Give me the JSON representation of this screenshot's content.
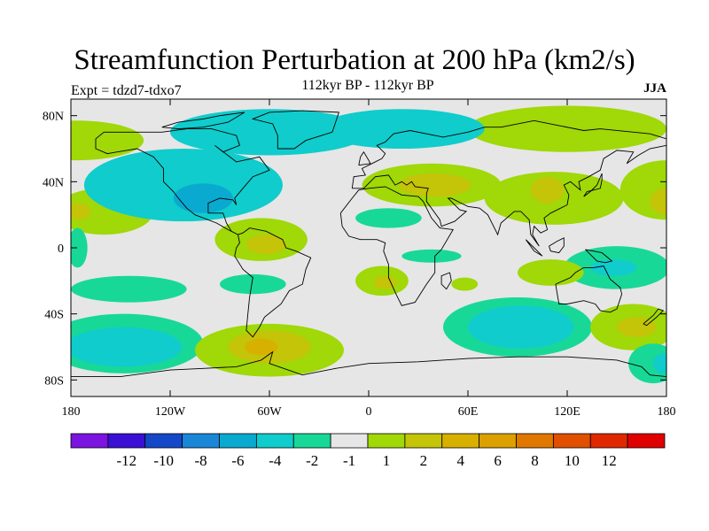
{
  "header": {
    "title": "Streamfunction Perturbation at 200 hPa (km2/s)",
    "subtitle": "112kyr BP - 112kyr BP",
    "expt": "Expt = tdzd7-tdxo7",
    "season": "JJA"
  },
  "map": {
    "lon_range": [
      -180,
      180
    ],
    "lat_range": [
      -90,
      90
    ],
    "x_ticks": [
      {
        "lon": -180,
        "label": "180"
      },
      {
        "lon": -120,
        "label": "120W"
      },
      {
        "lon": -60,
        "label": "60W"
      },
      {
        "lon": 0,
        "label": "0"
      },
      {
        "lon": 60,
        "label": "60E"
      },
      {
        "lon": 120,
        "label": "120E"
      },
      {
        "lon": 180,
        "label": "180"
      }
    ],
    "y_ticks": [
      {
        "lat": 80,
        "label": "80N"
      },
      {
        "lat": 40,
        "label": "40N"
      },
      {
        "lat": 0,
        "label": "0"
      },
      {
        "lat": -40,
        "label": "40S"
      },
      {
        "lat": -80,
        "label": "80S"
      }
    ],
    "background_color": "#e6e6e6",
    "coastline_color": "#000000",
    "regions": [
      {
        "lon": -112,
        "lat": 38,
        "rlon": 60,
        "rlat": 22,
        "level": -2
      },
      {
        "lon": -108,
        "lat": 35,
        "rlon": 38,
        "rlat": 14,
        "level": -3
      },
      {
        "lon": -100,
        "lat": 30,
        "rlon": 18,
        "rlat": 9,
        "level": -4
      },
      {
        "lon": -60,
        "lat": 70,
        "rlon": 60,
        "rlat": 14,
        "level": -2
      },
      {
        "lon": 20,
        "lat": 72,
        "rlon": 50,
        "rlat": 12,
        "level": -2
      },
      {
        "lon": 15,
        "lat": 72,
        "rlon": 30,
        "rlat": 8,
        "level": -3
      },
      {
        "lon": -176,
        "lat": 65,
        "rlon": 40,
        "rlat": 12,
        "level": 1
      },
      {
        "lon": -160,
        "lat": 22,
        "rlon": 30,
        "rlat": 14,
        "level": 1
      },
      {
        "lon": -176,
        "lat": 22,
        "rlon": 8,
        "rlat": 5,
        "level": 2
      },
      {
        "lon": -65,
        "lat": 5,
        "rlon": 28,
        "rlat": 13,
        "level": 1
      },
      {
        "lon": -62,
        "lat": 2,
        "rlon": 12,
        "rlat": 6,
        "level": 2
      },
      {
        "lon": 38,
        "lat": 38,
        "rlon": 42,
        "rlat": 13,
        "level": 1
      },
      {
        "lon": 40,
        "lat": 38,
        "rlon": 22,
        "rlat": 7,
        "level": 2
      },
      {
        "lon": 12,
        "lat": 18,
        "rlon": 20,
        "rlat": 6,
        "level": -1
      },
      {
        "lon": 38,
        "lat": -5,
        "rlon": 18,
        "rlat": 4,
        "level": -1
      },
      {
        "lon": 8,
        "lat": -20,
        "rlon": 16,
        "rlat": 9,
        "level": 1
      },
      {
        "lon": 10,
        "lat": -21,
        "rlon": 7,
        "rlat": 4,
        "level": 2
      },
      {
        "lon": 58,
        "lat": -22,
        "rlon": 8,
        "rlat": 4,
        "level": 1
      },
      {
        "lon": 120,
        "lat": 72,
        "rlon": 60,
        "rlat": 14,
        "level": 1
      },
      {
        "lon": 180,
        "lat": 35,
        "rlon": 28,
        "rlat": 18,
        "level": 1
      },
      {
        "lon": 180,
        "lat": 28,
        "rlon": 10,
        "rlat": 8,
        "level": 2
      },
      {
        "lon": 112,
        "lat": 30,
        "rlon": 42,
        "rlat": 16,
        "level": 1
      },
      {
        "lon": 108,
        "lat": 35,
        "rlon": 10,
        "rlat": 8,
        "level": 2
      },
      {
        "lon": 150,
        "lat": -12,
        "rlon": 32,
        "rlat": 13,
        "level": -1
      },
      {
        "lon": 148,
        "lat": -12,
        "rlon": 14,
        "rlat": 5,
        "level": -2
      },
      {
        "lon": 110,
        "lat": -15,
        "rlon": 20,
        "rlat": 8,
        "level": 1
      },
      {
        "lon": 90,
        "lat": -48,
        "rlon": 45,
        "rlat": 18,
        "level": -1
      },
      {
        "lon": 92,
        "lat": -48,
        "rlon": 32,
        "rlat": 13,
        "level": -2
      },
      {
        "lon": 160,
        "lat": -48,
        "rlon": 26,
        "rlat": 14,
        "level": 1
      },
      {
        "lon": 162,
        "lat": -48,
        "rlon": 12,
        "rlat": 6,
        "level": 2
      },
      {
        "lon": -148,
        "lat": -58,
        "rlon": 48,
        "rlat": 18,
        "level": -1
      },
      {
        "lon": -148,
        "lat": -60,
        "rlon": 35,
        "rlat": 12,
        "level": -2
      },
      {
        "lon": -145,
        "lat": -60,
        "rlon": 20,
        "rlat": 6,
        "level": -3
      },
      {
        "lon": -145,
        "lat": -25,
        "rlon": 35,
        "rlat": 8,
        "level": -1
      },
      {
        "lon": -60,
        "lat": -62,
        "rlon": 45,
        "rlat": 16,
        "level": 1
      },
      {
        "lon": -60,
        "lat": -60,
        "rlon": 25,
        "rlat": 10,
        "level": 2
      },
      {
        "lon": -65,
        "lat": -60,
        "rlon": 10,
        "rlat": 5,
        "level": 4
      },
      {
        "lon": -70,
        "lat": -22,
        "rlon": 20,
        "rlat": 6,
        "level": -1
      },
      {
        "lon": 172,
        "lat": -70,
        "rlon": 15,
        "rlat": 12,
        "level": -1
      },
      {
        "lon": 178,
        "lat": -70,
        "rlon": 6,
        "rlat": 6,
        "level": -2
      },
      {
        "lon": -176,
        "lat": 0,
        "rlon": 6,
        "rlat": 12,
        "level": -1
      }
    ]
  },
  "colorbar": {
    "colors": [
      "#7b14e0",
      "#3a10d4",
      "#1448c8",
      "#1a86d8",
      "#0aaad0",
      "#10cccc",
      "#18d898",
      "#e6e6e6",
      "#a0d808",
      "#c4c408",
      "#d8b000",
      "#dca000",
      "#e07800",
      "#e05000",
      "#e02800",
      "#e00000"
    ],
    "labels": [
      "-12",
      "-10",
      "-8",
      "-6",
      "-4",
      "-2",
      "-1",
      "1",
      "2",
      "4",
      "6",
      "8",
      "10",
      "12"
    ]
  }
}
